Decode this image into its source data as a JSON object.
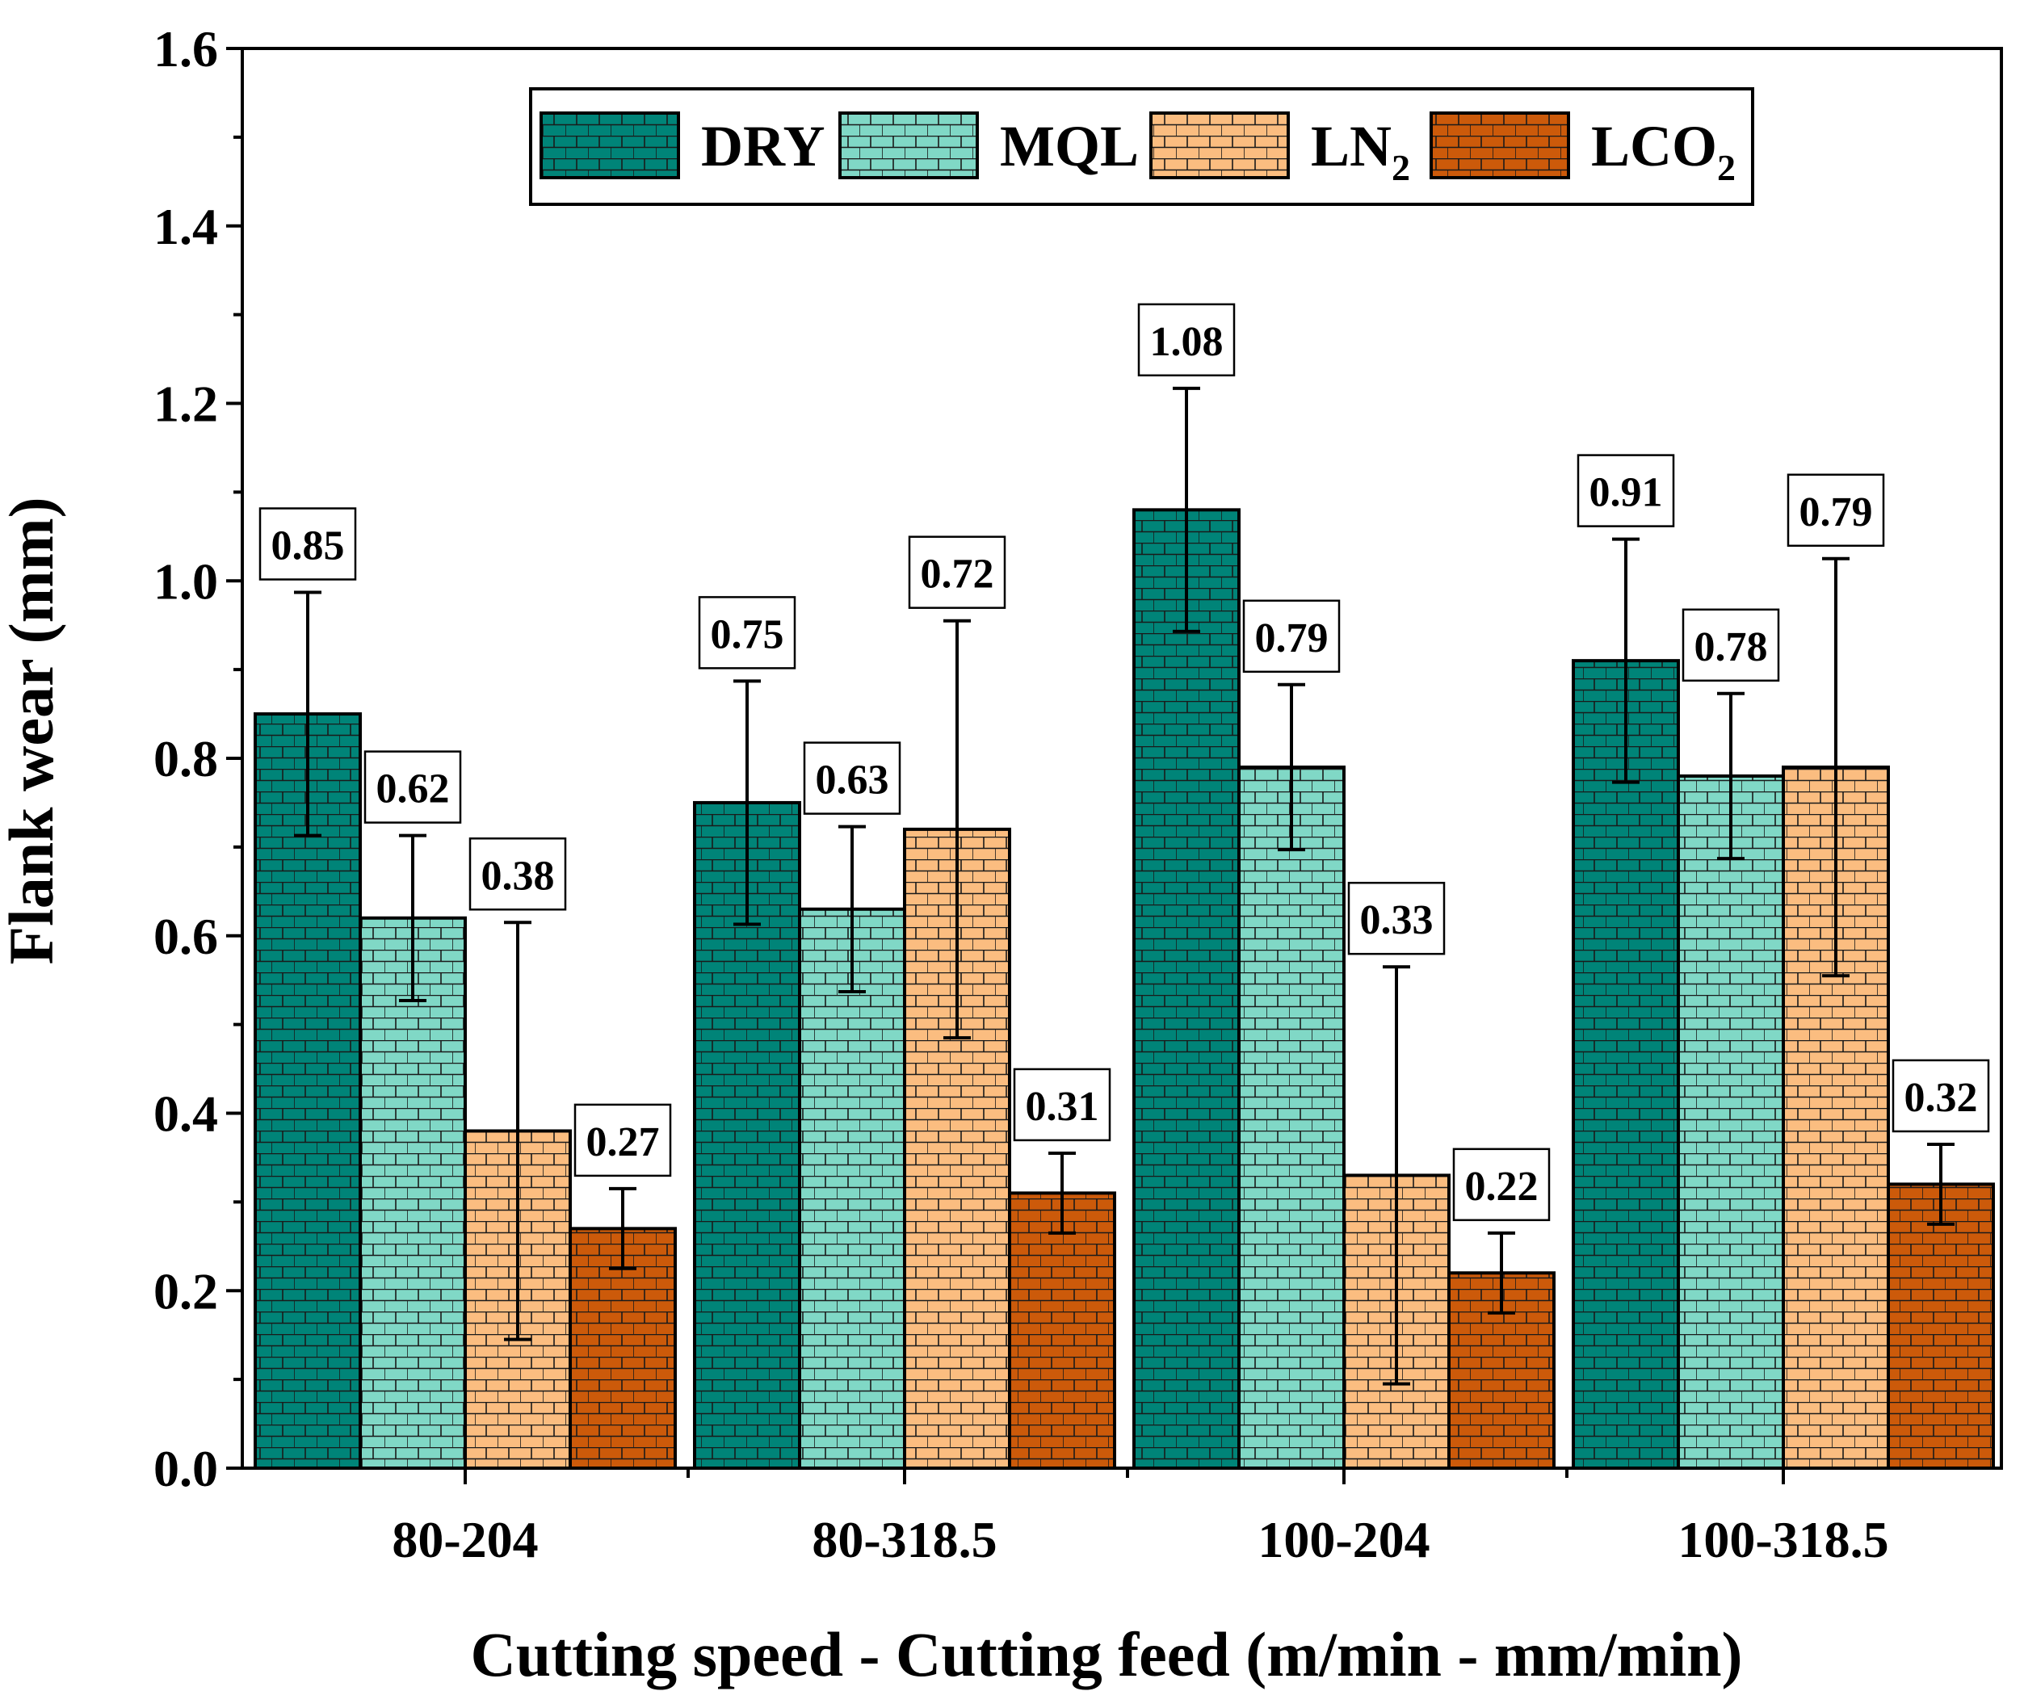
{
  "chart_data": {
    "type": "bar",
    "categories": [
      "80-204",
      "80-318.5",
      "100-204",
      "100-318.5"
    ],
    "series": [
      {
        "name": "DRY",
        "legend_main": "DRY",
        "legend_sub": "",
        "values": [
          0.85,
          0.75,
          1.08,
          0.91
        ],
        "errors": [
          0.137,
          0.137,
          0.137,
          0.137
        ],
        "color": "#008478"
      },
      {
        "name": "MQL",
        "legend_main": "MQL",
        "legend_sub": "",
        "values": [
          0.62,
          0.63,
          0.79,
          0.78
        ],
        "errors": [
          0.093,
          0.093,
          0.093,
          0.093
        ],
        "color": "#80d8c6"
      },
      {
        "name": "LN2",
        "legend_main": "LN",
        "legend_sub": "2",
        "values": [
          0.38,
          0.72,
          0.33,
          0.79
        ],
        "errors": [
          0.235,
          0.235,
          0.235,
          0.235
        ],
        "color": "#fbbd80"
      },
      {
        "name": "LCO2",
        "legend_main": "LCO",
        "legend_sub": "2",
        "values": [
          0.27,
          0.31,
          0.22,
          0.32
        ],
        "errors": [
          0.045,
          0.045,
          0.045,
          0.045
        ],
        "color": "#cc5a0a"
      }
    ],
    "data_labels": [
      [
        "0.85",
        "0.75",
        "1.08",
        "0.91"
      ],
      [
        "0.62",
        "0.63",
        "0.79",
        "0.78"
      ],
      [
        "0.38",
        "0.72",
        "0.33",
        "0.79"
      ],
      [
        "0.27",
        "0.31",
        "0.22",
        "0.32"
      ]
    ],
    "title": "",
    "xlabel": "Cutting speed - Cutting feed (m/min - mm/min)",
    "ylabel": "Flank wear (mm)",
    "ylim": [
      0,
      1.6
    ],
    "yticks": [
      0.0,
      0.2,
      0.4,
      0.6,
      0.8,
      1.0,
      1.2,
      1.4,
      1.6
    ],
    "ytick_labels": [
      "0.0",
      "0.2",
      "0.4",
      "0.6",
      "0.8",
      "1.0",
      "1.2",
      "1.4",
      "1.6"
    ],
    "grid": false,
    "legend_position": "top"
  }
}
